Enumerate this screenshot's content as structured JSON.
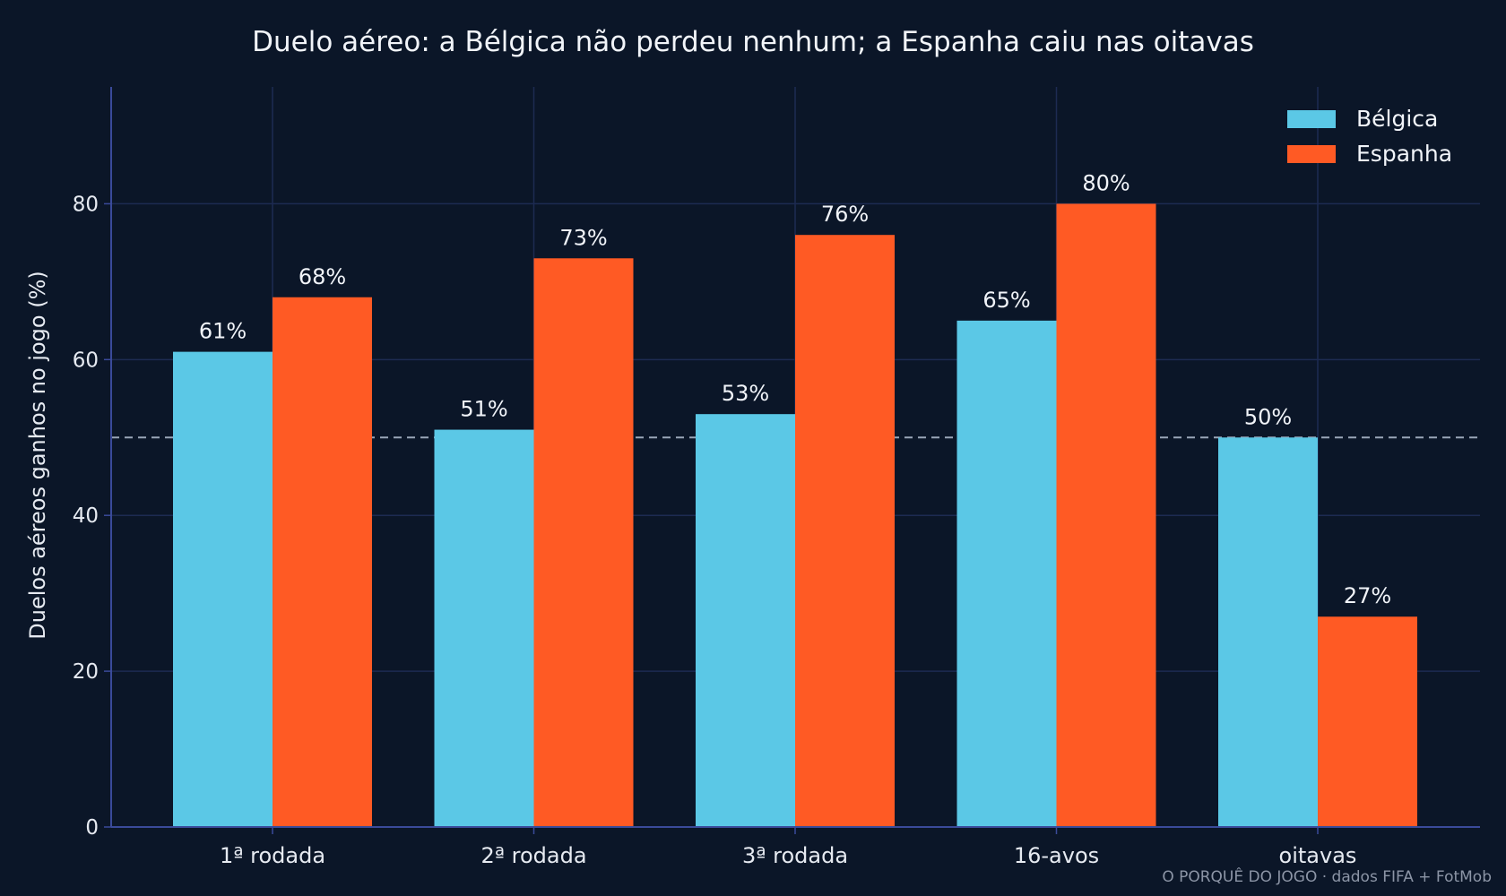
{
  "chart_data": {
    "type": "bar",
    "title": "Duelo aéreo: a Bélgica não perdeu nenhum; a Espanha caiu nas oitavas",
    "ylabel": "Duelos aéreos ganhos no jogo (%)",
    "xlabel": "",
    "categories": [
      "1ª rodada",
      "2ª rodada",
      "3ª rodada",
      "16-avos",
      "oitavas"
    ],
    "series": [
      {
        "name": "Bélgica",
        "color": "#5bc8e6",
        "values": [
          61,
          51,
          53,
          65,
          50
        ],
        "labels": [
          "61%",
          "51%",
          "53%",
          "65%",
          "50%"
        ]
      },
      {
        "name": "Espanha",
        "color": "#ff5a24",
        "values": [
          68,
          73,
          76,
          80,
          27
        ],
        "labels": [
          "68%",
          "73%",
          "76%",
          "80%",
          "27%"
        ]
      }
    ],
    "ylim": [
      0,
      95
    ],
    "yticks": [
      0,
      20,
      40,
      60,
      80
    ],
    "yticks_labels": [
      "0",
      "20",
      "40",
      "60",
      "80"
    ],
    "reference_line": 50,
    "grid": true,
    "legend_position": "top-right"
  },
  "source_note": "O PORQUÊ DO JOGO · dados FIFA + FotMob",
  "colors": {
    "background": "#0b1628",
    "grid": "#1d2b52",
    "axis": "#3a4a9a",
    "reference": "#9aa6b8"
  }
}
